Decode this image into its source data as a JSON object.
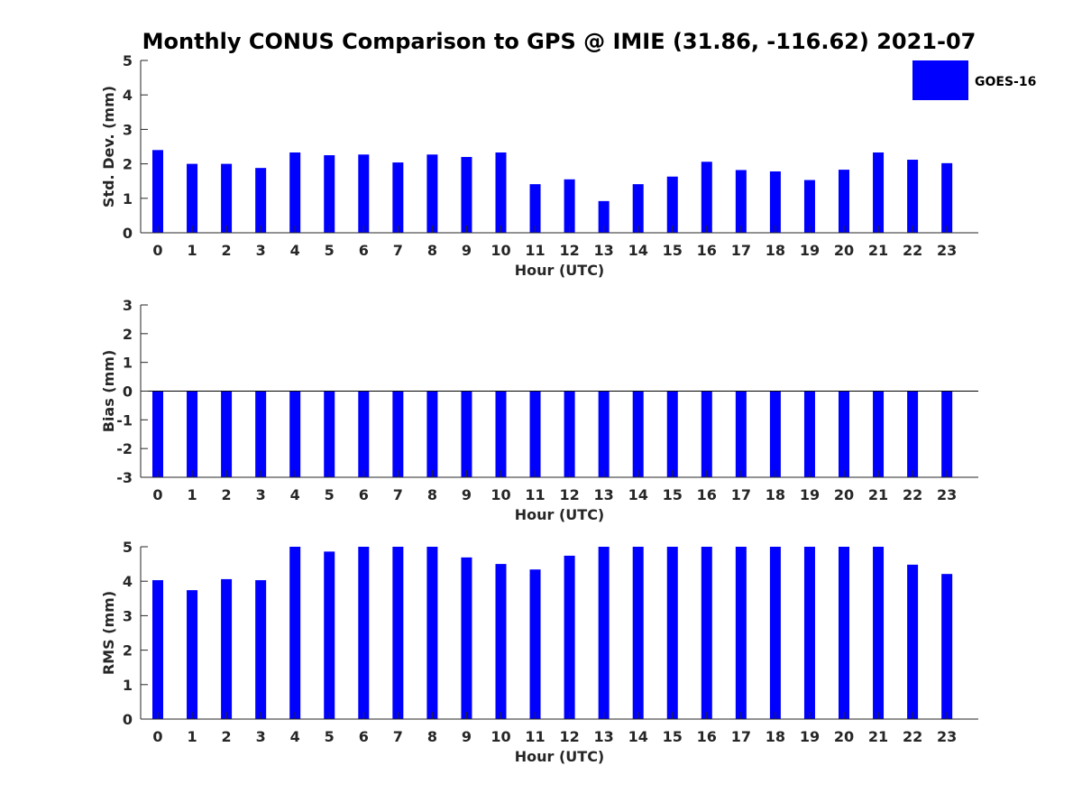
{
  "chart_data": [
    {
      "type": "bar",
      "title": "Monthly CONUS Comparison to GPS @ IMIE (31.86, -116.62) 2021-07",
      "xlabel": "Hour (UTC)",
      "ylabel": "Std. Dev. (mm)",
      "ylim": [
        0,
        5
      ],
      "yticks": [
        "0",
        "1",
        "2",
        "3",
        "4",
        "5"
      ],
      "categories": [
        "0",
        "1",
        "2",
        "3",
        "4",
        "5",
        "6",
        "7",
        "8",
        "9",
        "10",
        "11",
        "12",
        "13",
        "14",
        "15",
        "16",
        "17",
        "18",
        "19",
        "20",
        "21",
        "22",
        "23"
      ],
      "series": [
        {
          "name": "GOES-16",
          "color": "#0000ff",
          "values": [
            2.4,
            2.0,
            2.0,
            1.88,
            2.33,
            2.25,
            2.27,
            2.04,
            2.27,
            2.2,
            2.33,
            1.41,
            1.55,
            0.92,
            1.41,
            1.63,
            2.06,
            1.82,
            1.78,
            1.53,
            1.83,
            2.33,
            2.12,
            2.02
          ]
        }
      ],
      "grid": false,
      "legend": "top-right"
    },
    {
      "type": "bar",
      "title": "",
      "xlabel": "Hour (UTC)",
      "ylabel": "Bias (mm)",
      "ylim": [
        -3,
        3
      ],
      "yticks": [
        "-3",
        "-2",
        "-1",
        "0",
        "1",
        "2",
        "3"
      ],
      "categories": [
        "0",
        "1",
        "2",
        "3",
        "4",
        "5",
        "6",
        "7",
        "8",
        "9",
        "10",
        "11",
        "12",
        "13",
        "14",
        "15",
        "16",
        "17",
        "18",
        "19",
        "20",
        "21",
        "22",
        "23"
      ],
      "series": [
        {
          "name": "GOES-16",
          "color": "#0000ff",
          "values": [
            -3,
            -3,
            -3,
            -3,
            -3,
            -3,
            -3,
            -3,
            -3,
            -3,
            -3,
            -3,
            -3,
            -3,
            -3,
            -3,
            -3,
            -3,
            -3,
            -3,
            -3,
            -3,
            -3,
            -3
          ]
        }
      ],
      "grid": false,
      "zero_line": true
    },
    {
      "type": "bar",
      "title": "",
      "xlabel": "Hour (UTC)",
      "ylabel": "RMS (mm)",
      "ylim": [
        0,
        5
      ],
      "yticks": [
        "0",
        "1",
        "2",
        "3",
        "4",
        "5"
      ],
      "categories": [
        "0",
        "1",
        "2",
        "3",
        "4",
        "5",
        "6",
        "7",
        "8",
        "9",
        "10",
        "11",
        "12",
        "13",
        "14",
        "15",
        "16",
        "17",
        "18",
        "19",
        "20",
        "21",
        "22",
        "23"
      ],
      "series": [
        {
          "name": "GOES-16",
          "color": "#0000ff",
          "values": [
            4.03,
            3.74,
            4.06,
            4.03,
            5.0,
            4.86,
            5.0,
            5.0,
            5.0,
            4.69,
            4.5,
            4.34,
            4.74,
            5.0,
            5.0,
            5.0,
            5.0,
            5.0,
            5.0,
            5.0,
            5.0,
            5.0,
            4.48,
            4.21
          ]
        }
      ],
      "grid": false
    }
  ],
  "legend": {
    "label": "GOES-16",
    "color": "#0000ff"
  }
}
